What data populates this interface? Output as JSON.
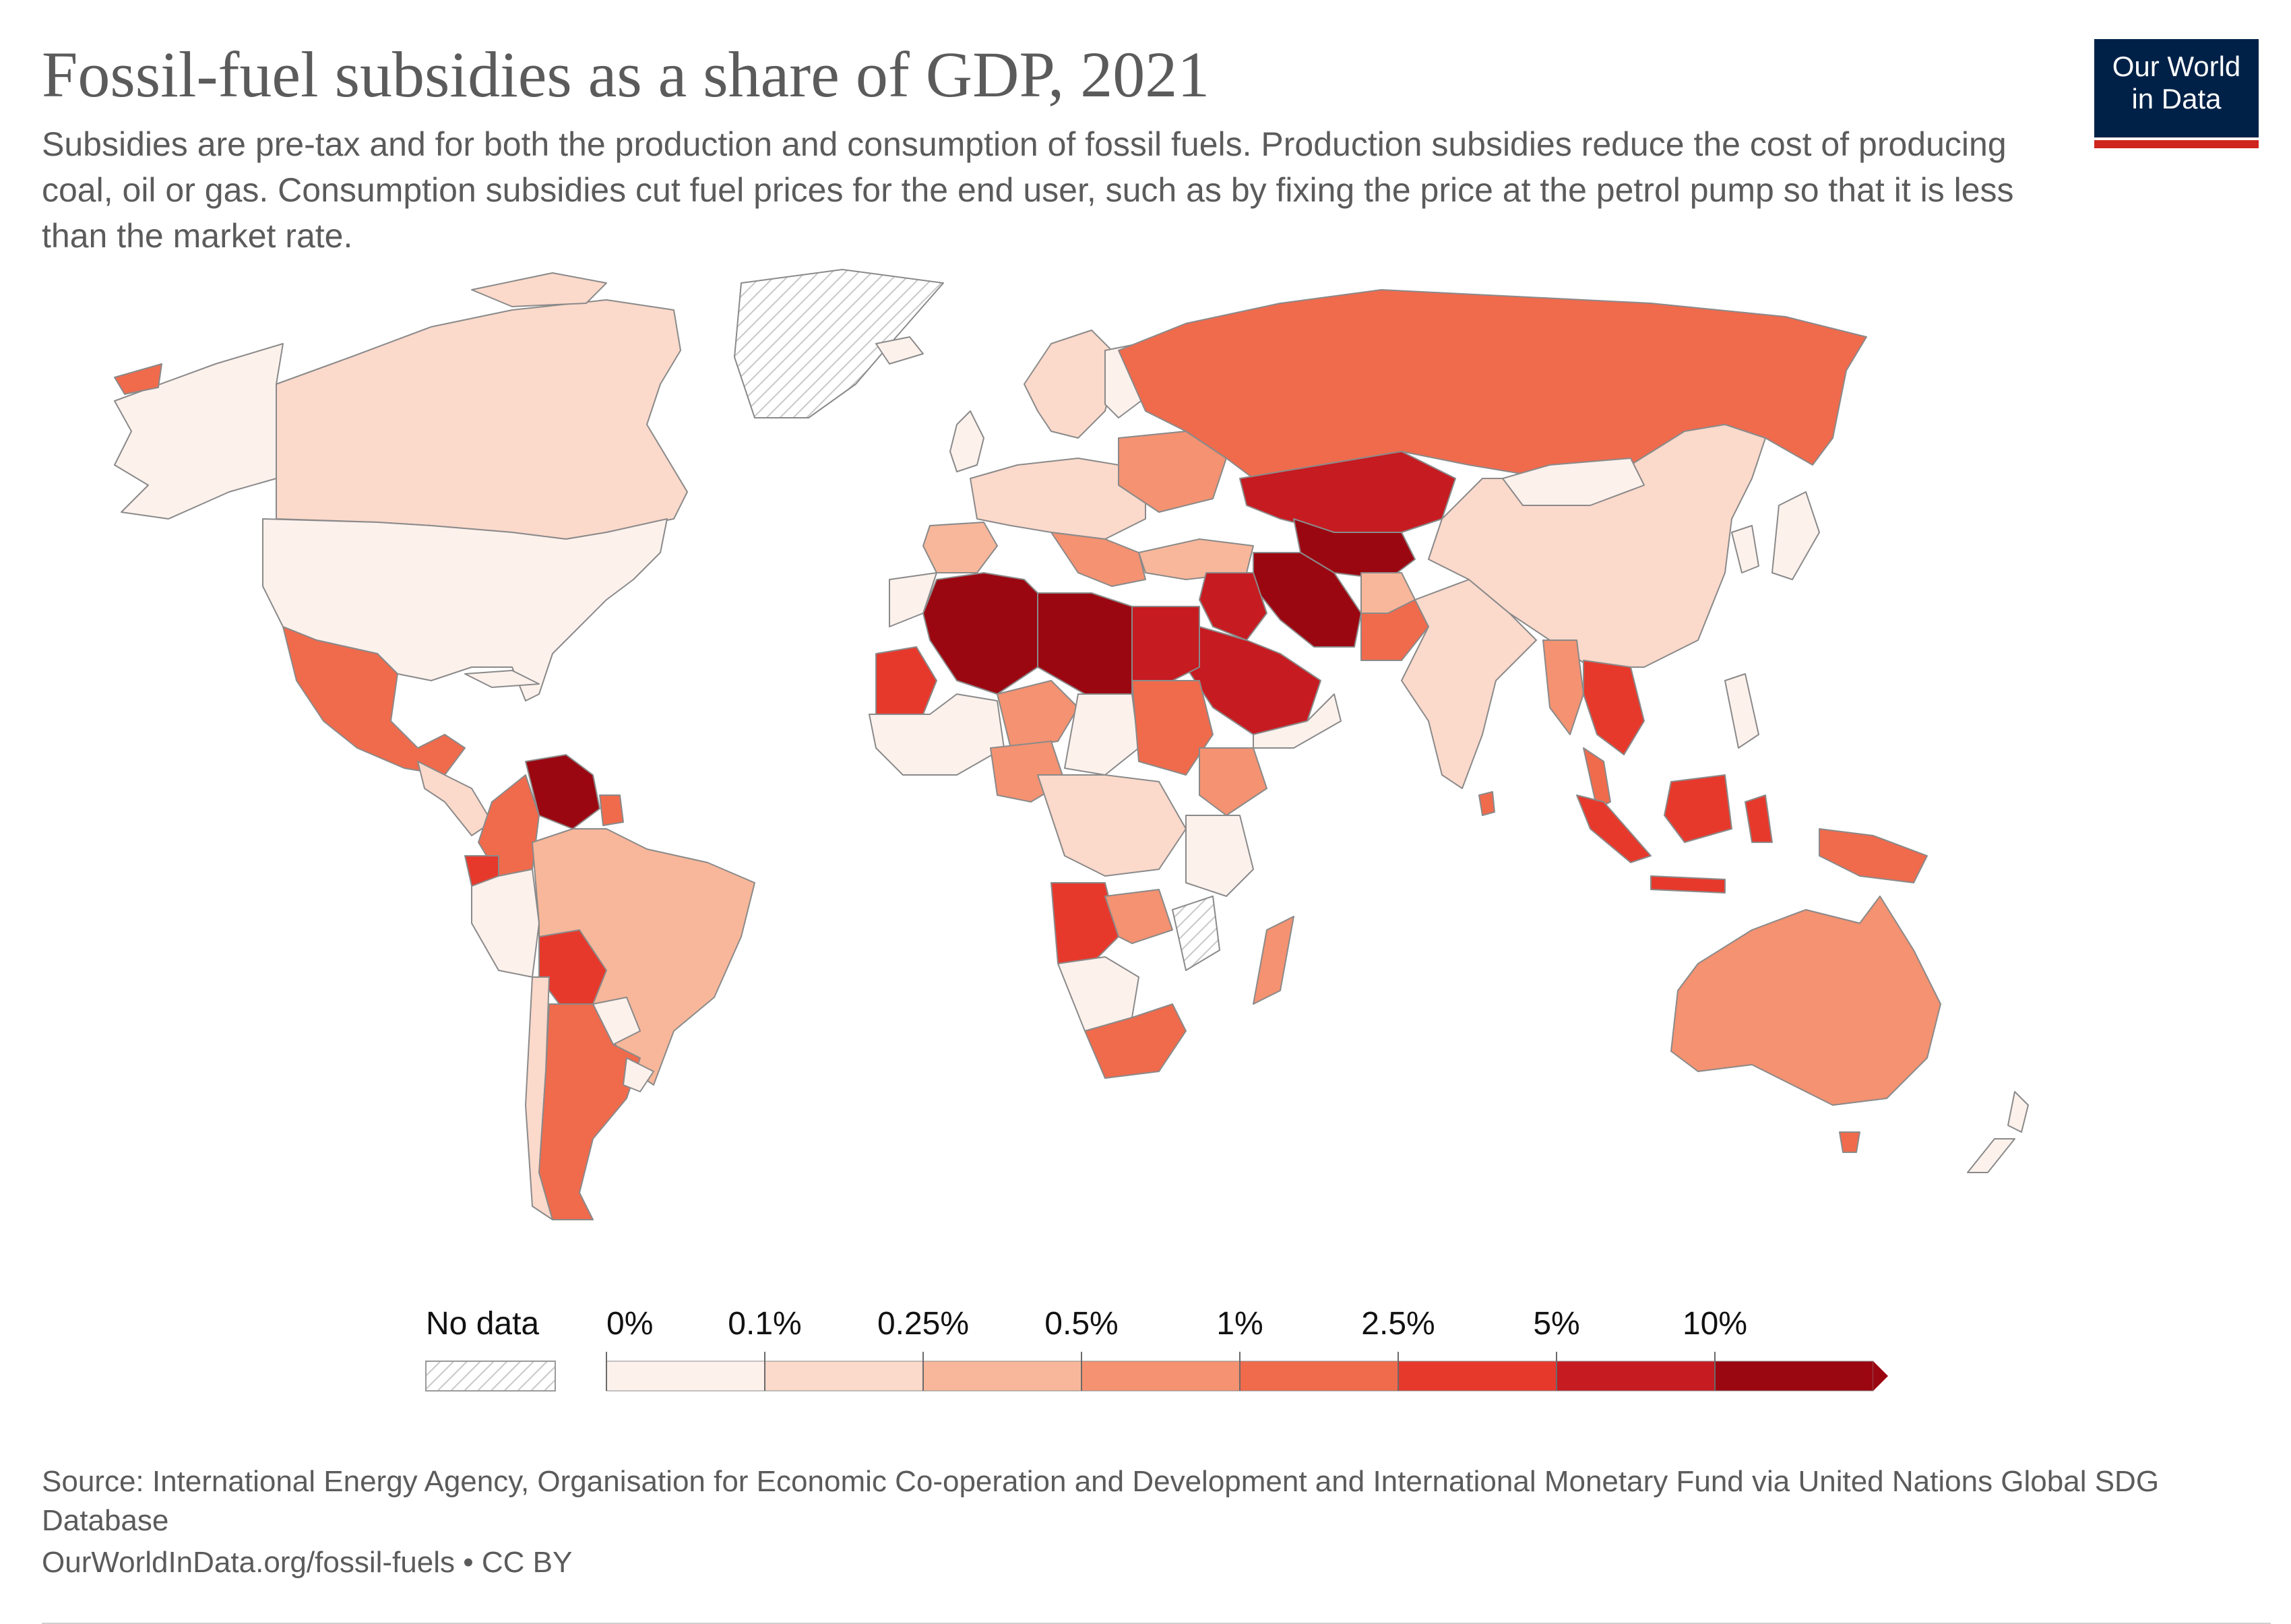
{
  "header": {
    "title": "Fossil-fuel subsidies as a share of GDP, 2021",
    "subtitle": "Subsidies are pre-tax and for both the production and consumption of fossil fuels. Production subsidies reduce the cost of producing coal, oil or gas. Consumption subsidies cut fuel prices for the end user, such as by fixing the price at the petrol pump so that it is less than the market rate."
  },
  "logo": {
    "line1": "Our World",
    "line2": "in Data",
    "bg_color": "#002147",
    "accent_color": "#ce261e"
  },
  "legend": {
    "no_data_label": "No data",
    "bins": [
      {
        "label": "0%",
        "color": "#fdf1ec"
      },
      {
        "label": "0.1%",
        "color": "#fbd9cb"
      },
      {
        "label": "0.25%",
        "color": "#f8b79a"
      },
      {
        "label": "0.5%",
        "color": "#f49271"
      },
      {
        "label": "1%",
        "color": "#f06a4c"
      },
      {
        "label": "2.5%",
        "color": "#e6392c"
      },
      {
        "label": "5%",
        "color": "#c61b21"
      },
      {
        "label": "10%",
        "color": "#9b0711"
      }
    ]
  },
  "map": {
    "type": "choropleth",
    "region": "World",
    "year": 2021,
    "unit": "% of GDP",
    "color_scale": [
      "#fdf1ec",
      "#fbd9cb",
      "#f8b79a",
      "#f49271",
      "#f06a4c",
      "#e6392c",
      "#c61b21",
      "#9b0711"
    ],
    "no_data_pattern": "hatched grey"
  },
  "source": {
    "text": "Source: International Energy Agency, Organisation for Economic Co-operation and Development and International Monetary Fund via United Nations Global SDG Database",
    "url_text": "OurWorldInData.org/fossil-fuels • CC BY"
  }
}
